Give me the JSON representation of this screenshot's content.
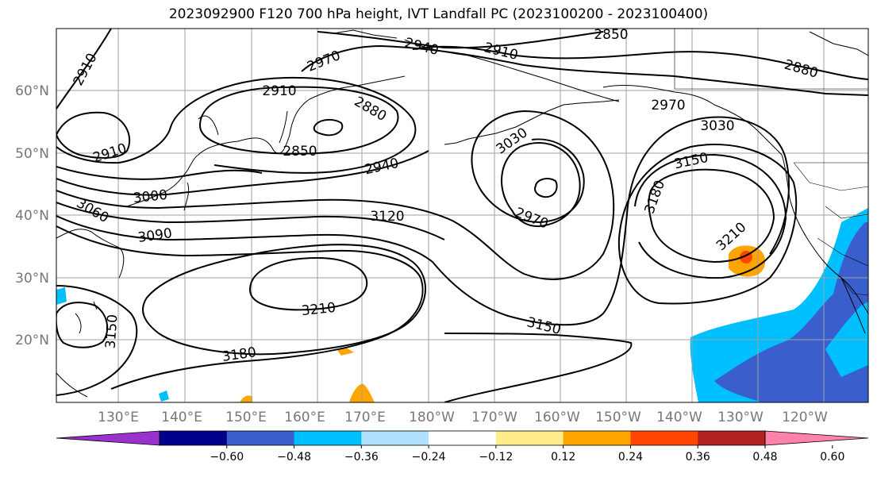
{
  "title": "2023092900 F120 700 hPa height, IVT Landfall PC (2023100200 - 2023100400)",
  "lat_labels": [
    "60°N",
    "50°N",
    "40°N",
    "30°N",
    "20°N"
  ],
  "lon_labels": [
    "130°E",
    "140°E",
    "150°E",
    "160°E",
    "170°E",
    "180°W",
    "170°W",
    "160°W",
    "150°W",
    "140°W",
    "130°W",
    "120°W"
  ],
  "contour_labels": [
    "2850",
    "2910",
    "2940",
    "2910",
    "2970",
    "2910",
    "2880",
    "2850",
    "2940",
    "2910",
    "3000",
    "3060",
    "3090",
    "3120",
    "3030",
    "2970",
    "2880",
    "2970",
    "3030",
    "3150",
    "3180",
    "3210",
    "3210",
    "3180",
    "3150",
    "3150"
  ],
  "colorbar": {
    "ticks": [
      "−0.60",
      "−0.48",
      "−0.36",
      "−0.24",
      "−0.12",
      "0.12",
      "0.24",
      "0.36",
      "0.48",
      "0.60"
    ],
    "colors": [
      "#9932cc",
      "#00008b",
      "#3a5fcd",
      "#00bfff",
      "#b0e2ff",
      "#ffffff",
      "#ffec8b",
      "#ffa500",
      "#ff4500",
      "#b22222",
      "#ff82ab"
    ]
  }
}
